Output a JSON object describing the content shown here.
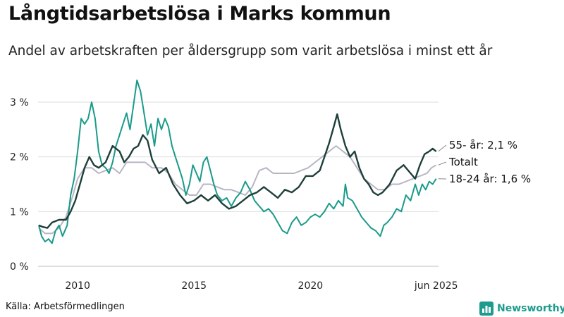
{
  "title": "Långtidsarbetslösa i Marks kommun",
  "subtitle": "Andel av arbetskraften per åldersgrupp som varit arbetslösa i minst ett år",
  "source": "Källa: Arbetsförmedlingen",
  "brand": "Newsworthy",
  "colors": {
    "older": "#1d3f3a",
    "total": "#b9b5c4",
    "young": "#1a9a8a",
    "grid": "#dedede",
    "brand": "#1d9b8e"
  },
  "chart_data": {
    "type": "line",
    "title": "Långtidsarbetslösa i Marks kommun",
    "subtitle": "Andel av arbetskraften per åldersgrupp som varit arbetslösa i minst ett år",
    "xlabel": "",
    "ylabel": "",
    "xlim": [
      2008.3,
      2025.5
    ],
    "ylim": [
      0,
      3.0
    ],
    "y_ticks": [
      {
        "value": 0,
        "label": "0 %"
      },
      {
        "value": 1,
        "label": "1 %"
      },
      {
        "value": 2,
        "label": "2 %"
      },
      {
        "value": 3,
        "label": "3 %"
      }
    ],
    "x_ticks": [
      {
        "value": 2010,
        "label": "2010"
      },
      {
        "value": 2015,
        "label": "2015"
      },
      {
        "value": 2020,
        "label": "2020"
      },
      {
        "value": 2025.4,
        "label": "jun 2025"
      }
    ],
    "grid": true,
    "legend": "direct labels at line ends (right)",
    "series": [
      {
        "key": "total",
        "label": "Totalt",
        "label_value": 1.85,
        "points": [
          [
            2008.33,
            0.7
          ],
          [
            2008.6,
            0.6
          ],
          [
            2008.9,
            0.6
          ],
          [
            2009.2,
            0.7
          ],
          [
            2009.5,
            0.9
          ],
          [
            2009.8,
            1.3
          ],
          [
            2010.0,
            1.6
          ],
          [
            2010.3,
            1.8
          ],
          [
            2010.6,
            1.8
          ],
          [
            2010.9,
            1.7
          ],
          [
            2011.2,
            1.75
          ],
          [
            2011.5,
            1.8
          ],
          [
            2011.8,
            1.7
          ],
          [
            2012.1,
            1.9
          ],
          [
            2012.5,
            1.9
          ],
          [
            2012.9,
            1.9
          ],
          [
            2013.2,
            1.8
          ],
          [
            2013.6,
            1.8
          ],
          [
            2013.9,
            1.7
          ],
          [
            2014.2,
            1.5
          ],
          [
            2014.5,
            1.4
          ],
          [
            2014.8,
            1.3
          ],
          [
            2015.1,
            1.3
          ],
          [
            2015.4,
            1.5
          ],
          [
            2015.7,
            1.5
          ],
          [
            2016.0,
            1.45
          ],
          [
            2016.3,
            1.4
          ],
          [
            2016.6,
            1.4
          ],
          [
            2016.9,
            1.35
          ],
          [
            2017.2,
            1.3
          ],
          [
            2017.5,
            1.45
          ],
          [
            2017.8,
            1.75
          ],
          [
            2018.1,
            1.8
          ],
          [
            2018.4,
            1.7
          ],
          [
            2018.7,
            1.7
          ],
          [
            2019.0,
            1.7
          ],
          [
            2019.3,
            1.7
          ],
          [
            2019.6,
            1.75
          ],
          [
            2019.9,
            1.8
          ],
          [
            2020.2,
            1.9
          ],
          [
            2020.5,
            2.0
          ],
          [
            2020.8,
            2.1
          ],
          [
            2021.1,
            2.2
          ],
          [
            2021.4,
            2.1
          ],
          [
            2021.7,
            2.0
          ],
          [
            2022.0,
            1.8
          ],
          [
            2022.3,
            1.6
          ],
          [
            2022.6,
            1.5
          ],
          [
            2022.9,
            1.4
          ],
          [
            2023.2,
            1.4
          ],
          [
            2023.5,
            1.5
          ],
          [
            2023.8,
            1.5
          ],
          [
            2024.1,
            1.55
          ],
          [
            2024.4,
            1.6
          ],
          [
            2024.7,
            1.65
          ],
          [
            2025.0,
            1.7
          ],
          [
            2025.2,
            1.8
          ],
          [
            2025.4,
            1.85
          ]
        ]
      },
      {
        "key": "older",
        "label": "55- år: 2,1 %",
        "label_value": 2.1,
        "points": [
          [
            2008.33,
            0.75
          ],
          [
            2008.5,
            0.72
          ],
          [
            2008.7,
            0.7
          ],
          [
            2008.9,
            0.8
          ],
          [
            2009.2,
            0.85
          ],
          [
            2009.5,
            0.85
          ],
          [
            2009.7,
            1.0
          ],
          [
            2009.9,
            1.2
          ],
          [
            2010.1,
            1.5
          ],
          [
            2010.3,
            1.8
          ],
          [
            2010.5,
            2.0
          ],
          [
            2010.7,
            1.85
          ],
          [
            2010.9,
            1.8
          ],
          [
            2011.2,
            1.9
          ],
          [
            2011.5,
            2.2
          ],
          [
            2011.8,
            2.1
          ],
          [
            2012.0,
            1.9
          ],
          [
            2012.2,
            2.0
          ],
          [
            2012.4,
            2.15
          ],
          [
            2012.6,
            2.2
          ],
          [
            2012.8,
            2.4
          ],
          [
            2013.0,
            2.3
          ],
          [
            2013.2,
            1.95
          ],
          [
            2013.5,
            1.7
          ],
          [
            2013.8,
            1.8
          ],
          [
            2014.1,
            1.5
          ],
          [
            2014.4,
            1.3
          ],
          [
            2014.7,
            1.15
          ],
          [
            2015.0,
            1.2
          ],
          [
            2015.3,
            1.3
          ],
          [
            2015.6,
            1.2
          ],
          [
            2015.9,
            1.3
          ],
          [
            2016.2,
            1.15
          ],
          [
            2016.5,
            1.05
          ],
          [
            2016.8,
            1.1
          ],
          [
            2017.1,
            1.2
          ],
          [
            2017.4,
            1.3
          ],
          [
            2017.7,
            1.35
          ],
          [
            2018.0,
            1.45
          ],
          [
            2018.3,
            1.35
          ],
          [
            2018.6,
            1.25
          ],
          [
            2018.9,
            1.4
          ],
          [
            2019.2,
            1.35
          ],
          [
            2019.5,
            1.45
          ],
          [
            2019.8,
            1.65
          ],
          [
            2020.1,
            1.65
          ],
          [
            2020.4,
            1.75
          ],
          [
            2020.6,
            2.0
          ],
          [
            2020.8,
            2.25
          ],
          [
            2021.0,
            2.55
          ],
          [
            2021.15,
            2.78
          ],
          [
            2021.3,
            2.5
          ],
          [
            2021.5,
            2.2
          ],
          [
            2021.7,
            2.0
          ],
          [
            2021.9,
            2.1
          ],
          [
            2022.1,
            1.8
          ],
          [
            2022.3,
            1.6
          ],
          [
            2022.5,
            1.5
          ],
          [
            2022.7,
            1.35
          ],
          [
            2022.9,
            1.3
          ],
          [
            2023.1,
            1.35
          ],
          [
            2023.4,
            1.5
          ],
          [
            2023.7,
            1.75
          ],
          [
            2024.0,
            1.85
          ],
          [
            2024.3,
            1.7
          ],
          [
            2024.5,
            1.6
          ],
          [
            2024.7,
            1.85
          ],
          [
            2024.9,
            2.05
          ],
          [
            2025.1,
            2.1
          ],
          [
            2025.25,
            2.15
          ],
          [
            2025.4,
            2.1
          ]
        ]
      },
      {
        "key": "young",
        "label": "18-24 år: 1,6 %",
        "label_value": 1.6,
        "points": [
          [
            2008.33,
            0.75
          ],
          [
            2008.45,
            0.55
          ],
          [
            2008.6,
            0.45
          ],
          [
            2008.75,
            0.5
          ],
          [
            2008.9,
            0.42
          ],
          [
            2009.05,
            0.65
          ],
          [
            2009.2,
            0.75
          ],
          [
            2009.35,
            0.55
          ],
          [
            2009.55,
            0.75
          ],
          [
            2009.7,
            1.3
          ],
          [
            2009.85,
            1.6
          ],
          [
            2010.0,
            2.1
          ],
          [
            2010.15,
            2.7
          ],
          [
            2010.3,
            2.6
          ],
          [
            2010.45,
            2.7
          ],
          [
            2010.6,
            3.0
          ],
          [
            2010.75,
            2.7
          ],
          [
            2010.9,
            2.1
          ],
          [
            2011.05,
            1.85
          ],
          [
            2011.2,
            1.8
          ],
          [
            2011.35,
            1.7
          ],
          [
            2011.5,
            1.9
          ],
          [
            2011.65,
            2.2
          ],
          [
            2011.8,
            2.4
          ],
          [
            2011.95,
            2.6
          ],
          [
            2012.1,
            2.8
          ],
          [
            2012.25,
            2.5
          ],
          [
            2012.4,
            2.95
          ],
          [
            2012.55,
            3.4
          ],
          [
            2012.7,
            3.2
          ],
          [
            2012.85,
            2.8
          ],
          [
            2013.0,
            2.4
          ],
          [
            2013.15,
            2.6
          ],
          [
            2013.3,
            2.2
          ],
          [
            2013.45,
            2.7
          ],
          [
            2013.6,
            2.5
          ],
          [
            2013.75,
            2.7
          ],
          [
            2013.9,
            2.55
          ],
          [
            2014.05,
            2.2
          ],
          [
            2014.2,
            2.0
          ],
          [
            2014.35,
            1.8
          ],
          [
            2014.5,
            1.6
          ],
          [
            2014.65,
            1.3
          ],
          [
            2014.8,
            1.5
          ],
          [
            2014.95,
            1.85
          ],
          [
            2015.1,
            1.7
          ],
          [
            2015.25,
            1.55
          ],
          [
            2015.4,
            1.9
          ],
          [
            2015.55,
            2.0
          ],
          [
            2015.7,
            1.75
          ],
          [
            2015.85,
            1.5
          ],
          [
            2016.0,
            1.3
          ],
          [
            2016.2,
            1.2
          ],
          [
            2016.4,
            1.25
          ],
          [
            2016.6,
            1.1
          ],
          [
            2016.8,
            1.25
          ],
          [
            2017.0,
            1.35
          ],
          [
            2017.2,
            1.55
          ],
          [
            2017.4,
            1.4
          ],
          [
            2017.6,
            1.2
          ],
          [
            2017.8,
            1.1
          ],
          [
            2018.0,
            1.0
          ],
          [
            2018.2,
            1.05
          ],
          [
            2018.4,
            0.95
          ],
          [
            2018.6,
            0.8
          ],
          [
            2018.8,
            0.65
          ],
          [
            2019.0,
            0.6
          ],
          [
            2019.2,
            0.8
          ],
          [
            2019.4,
            0.9
          ],
          [
            2019.6,
            0.75
          ],
          [
            2019.8,
            0.8
          ],
          [
            2020.0,
            0.9
          ],
          [
            2020.2,
            0.95
          ],
          [
            2020.4,
            0.9
          ],
          [
            2020.6,
            1.0
          ],
          [
            2020.8,
            1.15
          ],
          [
            2021.0,
            1.05
          ],
          [
            2021.2,
            1.2
          ],
          [
            2021.4,
            1.1
          ],
          [
            2021.5,
            1.5
          ],
          [
            2021.6,
            1.25
          ],
          [
            2021.8,
            1.2
          ],
          [
            2022.0,
            1.05
          ],
          [
            2022.2,
            0.9
          ],
          [
            2022.4,
            0.8
          ],
          [
            2022.6,
            0.7
          ],
          [
            2022.8,
            0.65
          ],
          [
            2023.0,
            0.55
          ],
          [
            2023.15,
            0.75
          ],
          [
            2023.3,
            0.8
          ],
          [
            2023.5,
            0.9
          ],
          [
            2023.7,
            1.05
          ],
          [
            2023.9,
            1.0
          ],
          [
            2024.1,
            1.3
          ],
          [
            2024.3,
            1.2
          ],
          [
            2024.5,
            1.5
          ],
          [
            2024.65,
            1.3
          ],
          [
            2024.8,
            1.5
          ],
          [
            2024.95,
            1.4
          ],
          [
            2025.1,
            1.55
          ],
          [
            2025.25,
            1.5
          ],
          [
            2025.4,
            1.6
          ]
        ]
      }
    ]
  }
}
